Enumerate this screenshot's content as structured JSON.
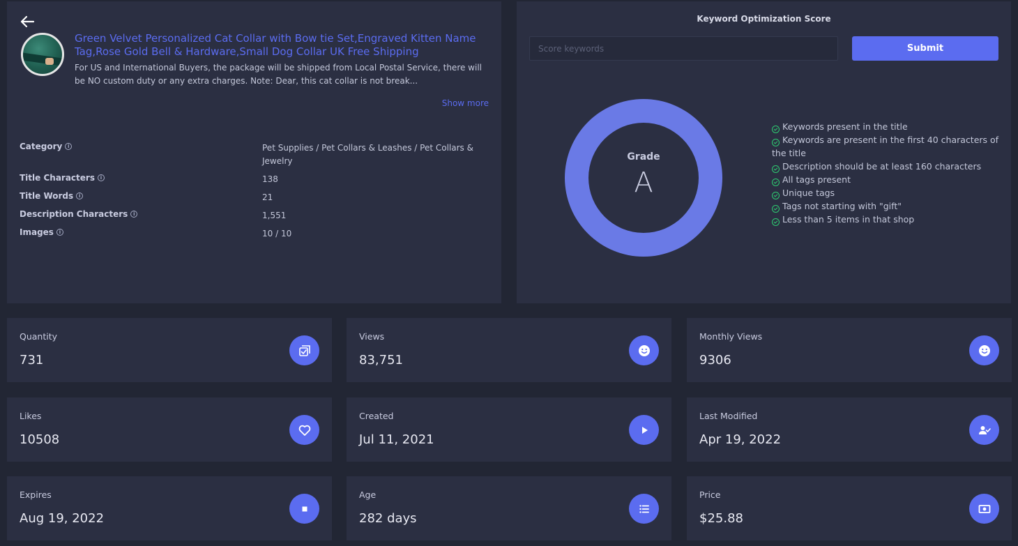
{
  "listing": {
    "title": "Green Velvet Personalized Cat Collar with Bow tie Set,Engraved Kitten Name Tag,Rose Gold Bell & Hardware,Small Dog Collar UK Free Shipping",
    "description": "For US and International Buyers, the package will be shipped from Local Postal Service, there will be NO custom duty or any extra charges. Note: Dear, this cat collar is not break...",
    "show_more": "Show more",
    "meta": [
      {
        "label": "Category",
        "value": "Pet Supplies / Pet Collars & Leashes / Pet Collars & Jewelry"
      },
      {
        "label": "Title Characters",
        "value": "138"
      },
      {
        "label": "Title Words",
        "value": "21"
      },
      {
        "label": "Description Characters",
        "value": "1,551"
      },
      {
        "label": "Images",
        "value": "10 / 10"
      }
    ]
  },
  "keyword": {
    "title": "Keyword Optimization Score",
    "placeholder": "Score keywords",
    "submit_label": "Submit",
    "grade_label": "Grade",
    "grade_value": "A",
    "checks": [
      "Keywords present in the title",
      "Keywords are present in the first 40 characters of the title",
      "Description should be at least 160 characters",
      "All tags present",
      "Unique tags",
      "Tags not starting with \"gift\"",
      "Less than 5 items in that shop"
    ]
  },
  "stats": [
    {
      "label": "Quantity",
      "value": "731",
      "icon": "checklist-icon"
    },
    {
      "label": "Views",
      "value": "83,751",
      "icon": "smiley-icon"
    },
    {
      "label": "Monthly Views",
      "value": "9306",
      "icon": "smiley-icon"
    },
    {
      "label": "Likes",
      "value": "10508",
      "icon": "heart-icon"
    },
    {
      "label": "Created",
      "value": "Jul 11, 2021",
      "icon": "play-icon"
    },
    {
      "label": "Last Modified",
      "value": "Apr 19, 2022",
      "icon": "user-check-icon"
    },
    {
      "label": "Expires",
      "value": "Aug 19, 2022",
      "icon": "stop-icon"
    },
    {
      "label": "Age",
      "value": "282 days",
      "icon": "list-icon"
    },
    {
      "label": "Price",
      "value": "$25.88",
      "icon": "money-icon"
    }
  ],
  "colors": {
    "accent": "#5b6cf0",
    "card": "#2b2f42",
    "background": "#222634",
    "check": "#2ecc71",
    "donut": "#6a7ae6"
  }
}
